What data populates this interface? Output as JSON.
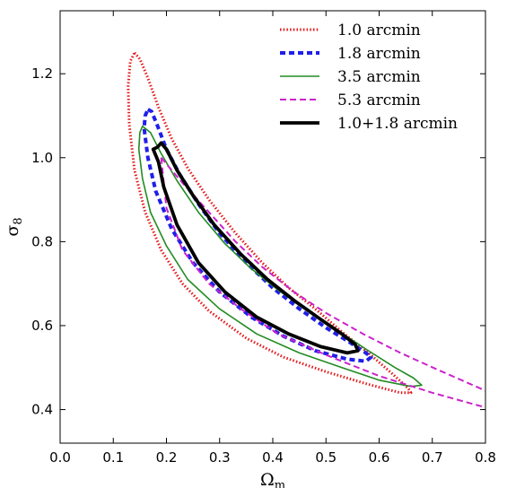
{
  "chart_data": {
    "type": "line",
    "title": "",
    "xlabel": "Ω",
    "xlabel_sub": "m",
    "ylabel": "σ",
    "ylabel_sub": "8",
    "xlim": [
      0.0,
      0.8
    ],
    "ylim": [
      0.32,
      1.35
    ],
    "xticks": [
      0.0,
      0.1,
      0.2,
      0.3,
      0.4,
      0.5,
      0.6,
      0.7,
      0.8
    ],
    "xtick_labels": [
      "0.0",
      "0.1",
      "0.2",
      "0.3",
      "0.4",
      "0.5",
      "0.6",
      "0.7",
      "0.8"
    ],
    "yticks": [
      0.4,
      0.6,
      0.8,
      1.0,
      1.2
    ],
    "ytick_labels": [
      "0.4",
      "0.6",
      "0.8",
      "1.0",
      "1.2"
    ],
    "grid": false,
    "legend_position": "top-right",
    "series": [
      {
        "name": "1.0 arcmin",
        "color": "#e41a1c",
        "style": "dotted",
        "closed": true,
        "points": [
          [
            0.14,
            1.25
          ],
          [
            0.15,
            1.235
          ],
          [
            0.165,
            1.19
          ],
          [
            0.185,
            1.12
          ],
          [
            0.21,
            1.045
          ],
          [
            0.24,
            0.975
          ],
          [
            0.28,
            0.9
          ],
          [
            0.33,
            0.82
          ],
          [
            0.38,
            0.75
          ],
          [
            0.43,
            0.69
          ],
          [
            0.48,
            0.64
          ],
          [
            0.53,
            0.585
          ],
          [
            0.58,
            0.535
          ],
          [
            0.625,
            0.485
          ],
          [
            0.655,
            0.45
          ],
          [
            0.66,
            0.44
          ],
          [
            0.64,
            0.44
          ],
          [
            0.58,
            0.46
          ],
          [
            0.5,
            0.49
          ],
          [
            0.42,
            0.525
          ],
          [
            0.35,
            0.57
          ],
          [
            0.28,
            0.635
          ],
          [
            0.23,
            0.7
          ],
          [
            0.19,
            0.78
          ],
          [
            0.16,
            0.87
          ],
          [
            0.14,
            0.97
          ],
          [
            0.13,
            1.08
          ],
          [
            0.128,
            1.17
          ],
          [
            0.132,
            1.23
          ],
          [
            0.14,
            1.25
          ]
        ]
      },
      {
        "name": "1.8 arcmin",
        "color": "#1f1fe8",
        "style": "dashed",
        "closed": true,
        "points": [
          [
            0.165,
            1.115
          ],
          [
            0.172,
            1.11
          ],
          [
            0.182,
            1.08
          ],
          [
            0.2,
            1.02
          ],
          [
            0.225,
            0.96
          ],
          [
            0.26,
            0.89
          ],
          [
            0.3,
            0.82
          ],
          [
            0.35,
            0.75
          ],
          [
            0.4,
            0.69
          ],
          [
            0.45,
            0.64
          ],
          [
            0.5,
            0.595
          ],
          [
            0.545,
            0.56
          ],
          [
            0.575,
            0.535
          ],
          [
            0.585,
            0.525
          ],
          [
            0.575,
            0.515
          ],
          [
            0.54,
            0.52
          ],
          [
            0.48,
            0.54
          ],
          [
            0.42,
            0.575
          ],
          [
            0.36,
            0.62
          ],
          [
            0.3,
            0.68
          ],
          [
            0.25,
            0.75
          ],
          [
            0.21,
            0.83
          ],
          [
            0.18,
            0.92
          ],
          [
            0.165,
            1.0
          ],
          [
            0.158,
            1.07
          ],
          [
            0.16,
            1.1
          ],
          [
            0.165,
            1.115
          ]
        ]
      },
      {
        "name": "3.5 arcmin",
        "color": "#228b22",
        "style": "solid",
        "closed": true,
        "points": [
          [
            0.155,
            1.075
          ],
          [
            0.17,
            1.06
          ],
          [
            0.19,
            1.01
          ],
          [
            0.22,
            0.945
          ],
          [
            0.26,
            0.87
          ],
          [
            0.31,
            0.795
          ],
          [
            0.36,
            0.735
          ],
          [
            0.41,
            0.685
          ],
          [
            0.46,
            0.64
          ],
          [
            0.52,
            0.59
          ],
          [
            0.58,
            0.54
          ],
          [
            0.63,
            0.5
          ],
          [
            0.665,
            0.475
          ],
          [
            0.68,
            0.458
          ],
          [
            0.66,
            0.455
          ],
          [
            0.6,
            0.47
          ],
          [
            0.53,
            0.5
          ],
          [
            0.45,
            0.535
          ],
          [
            0.37,
            0.58
          ],
          [
            0.3,
            0.64
          ],
          [
            0.24,
            0.71
          ],
          [
            0.2,
            0.79
          ],
          [
            0.17,
            0.87
          ],
          [
            0.155,
            0.95
          ],
          [
            0.148,
            1.02
          ],
          [
            0.15,
            1.06
          ],
          [
            0.155,
            1.075
          ]
        ]
      },
      {
        "name": "5.3 arcmin",
        "color": "#cc22cc",
        "style": "dashed",
        "closed": false,
        "points_upper": [
          [
            0.19,
            1.0
          ],
          [
            0.23,
            0.94
          ],
          [
            0.28,
            0.87
          ],
          [
            0.33,
            0.8
          ],
          [
            0.38,
            0.74
          ],
          [
            0.44,
            0.68
          ],
          [
            0.5,
            0.63
          ],
          [
            0.57,
            0.58
          ],
          [
            0.64,
            0.535
          ],
          [
            0.71,
            0.495
          ],
          [
            0.8,
            0.445
          ]
        ],
        "points_lower": [
          [
            0.19,
            1.0
          ],
          [
            0.2,
            0.88
          ],
          [
            0.23,
            0.78
          ],
          [
            0.28,
            0.7
          ],
          [
            0.34,
            0.64
          ],
          [
            0.41,
            0.58
          ],
          [
            0.5,
            0.53
          ],
          [
            0.6,
            0.48
          ],
          [
            0.7,
            0.44
          ],
          [
            0.8,
            0.405
          ]
        ]
      },
      {
        "name": "1.0+1.8 arcmin",
        "color": "#000000",
        "style": "solid-thick",
        "closed": true,
        "points": [
          [
            0.183,
            1.025
          ],
          [
            0.19,
            1.035
          ],
          [
            0.2,
            1.02
          ],
          [
            0.22,
            0.97
          ],
          [
            0.25,
            0.91
          ],
          [
            0.29,
            0.84
          ],
          [
            0.34,
            0.77
          ],
          [
            0.39,
            0.71
          ],
          [
            0.44,
            0.66
          ],
          [
            0.49,
            0.615
          ],
          [
            0.53,
            0.58
          ],
          [
            0.555,
            0.555
          ],
          [
            0.56,
            0.54
          ],
          [
            0.54,
            0.535
          ],
          [
            0.49,
            0.55
          ],
          [
            0.43,
            0.58
          ],
          [
            0.37,
            0.62
          ],
          [
            0.31,
            0.68
          ],
          [
            0.26,
            0.75
          ],
          [
            0.22,
            0.84
          ],
          [
            0.195,
            0.93
          ],
          [
            0.185,
            0.99
          ],
          [
            0.175,
            1.02
          ],
          [
            0.183,
            1.025
          ]
        ]
      }
    ]
  }
}
